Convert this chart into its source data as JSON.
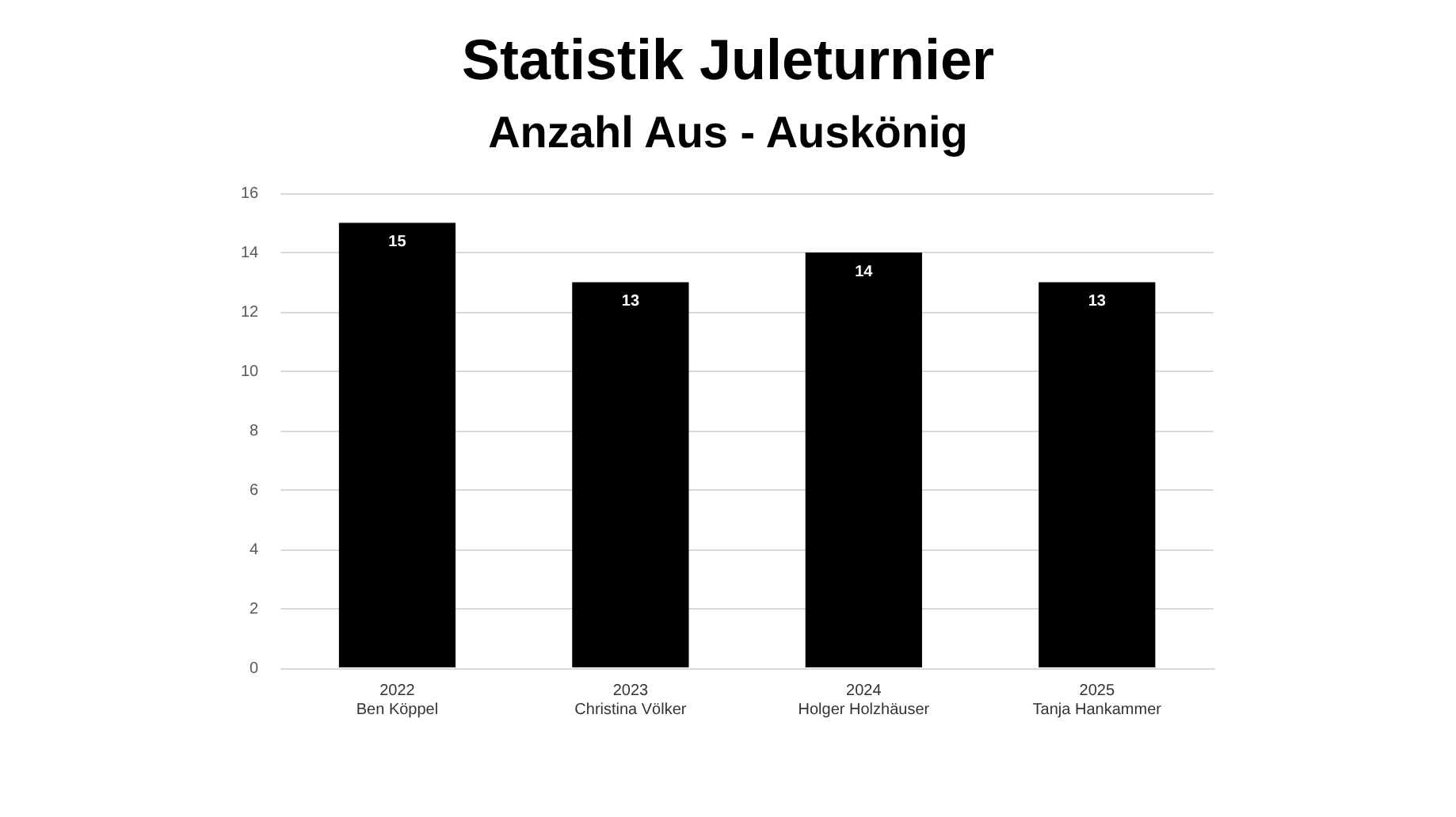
{
  "chart_data": {
    "type": "bar",
    "title": "Statistik Juleturnier",
    "subtitle": "Anzahl Aus - Auskönig",
    "categories": [
      "2022\nBen Köppel",
      "2023\nChristina Völker",
      "2024\nHolger Holzhäuser",
      "2025\nTanja Hankammer"
    ],
    "values": [
      15,
      13,
      14,
      13
    ],
    "color": "#000000",
    "ylim": [
      0,
      16
    ],
    "yticks": [
      0,
      2,
      4,
      6,
      8,
      10,
      12,
      14,
      16
    ],
    "grid": "y",
    "data_labels": true,
    "legend": false
  }
}
